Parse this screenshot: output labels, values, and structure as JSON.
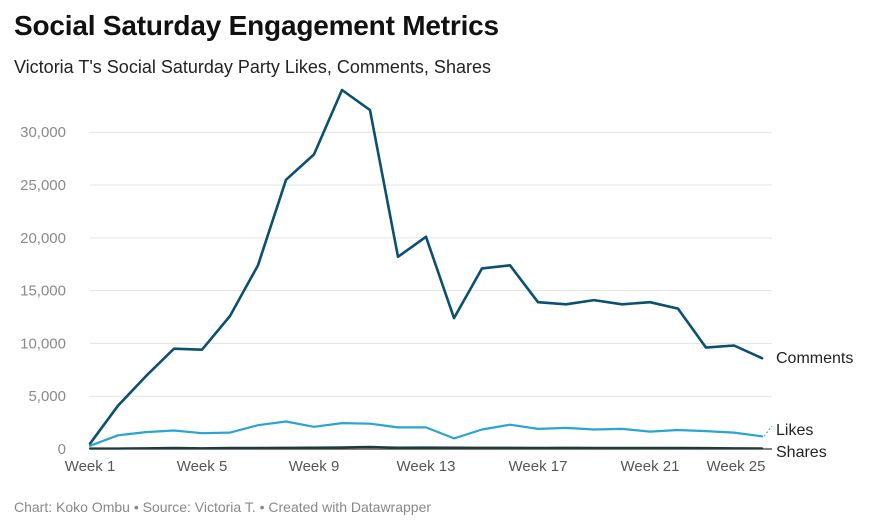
{
  "header": {
    "title": "Social Saturday Engagement Metrics",
    "subtitle": "Victoria T's Social Saturday Party Likes, Comments, Shares"
  },
  "footer": {
    "credit": "Chart: Koko Ombu • Source: Victoria T. • Created with Datawrapper"
  },
  "chart_data": {
    "type": "line",
    "title": "Social Saturday Engagement Metrics",
    "subtitle": "Victoria T's Social Saturday Party Likes, Comments, Shares",
    "xlabel": "",
    "ylabel": "",
    "x": [
      "Week 1",
      "Week 2",
      "Week 3",
      "Week 4",
      "Week 5",
      "Week 6",
      "Week 7",
      "Week 8",
      "Week 9",
      "Week 10",
      "Week 11",
      "Week 12",
      "Week 13",
      "Week 14",
      "Week 15",
      "Week 16",
      "Week 17",
      "Week 18",
      "Week 19",
      "Week 20",
      "Week 21",
      "Week 22",
      "Week 23",
      "Week 24",
      "Week 25"
    ],
    "x_tick_labels": [
      "Week 1",
      "Week 5",
      "Week 9",
      "Week 13",
      "Week 17",
      "Week 21",
      "Week 25"
    ],
    "ylim": [
      0,
      34000
    ],
    "y_ticks": [
      0,
      5000,
      10000,
      15000,
      20000,
      25000,
      30000
    ],
    "y_tick_labels": [
      "0",
      "5,000",
      "10,000",
      "15,000",
      "20,000",
      "25,000",
      "30,000"
    ],
    "grid": true,
    "legend": "direct labels at right end of lines",
    "series": [
      {
        "name": "Comments",
        "color": "#0b4f71",
        "values": [
          500,
          4100,
          6900,
          9500,
          9400,
          12600,
          17400,
          25500,
          27900,
          34000,
          32100,
          18200,
          20100,
          12400,
          17100,
          17400,
          13900,
          13700,
          14100,
          13700,
          13900,
          13300,
          9600,
          9800,
          8600
        ]
      },
      {
        "name": "Likes",
        "color": "#2aa4d4",
        "values": [
          300,
          1300,
          1600,
          1750,
          1500,
          1550,
          2250,
          2600,
          2100,
          2450,
          2400,
          2050,
          2050,
          1000,
          1850,
          2300,
          1900,
          2000,
          1850,
          1900,
          1650,
          1800,
          1700,
          1550,
          1200
        ]
      },
      {
        "name": "Shares",
        "color": "#1f3a3a",
        "values": [
          50,
          50,
          80,
          100,
          80,
          100,
          100,
          120,
          130,
          150,
          200,
          130,
          140,
          130,
          120,
          120,
          110,
          120,
          110,
          100,
          110,
          100,
          90,
          80,
          60
        ]
      }
    ]
  }
}
